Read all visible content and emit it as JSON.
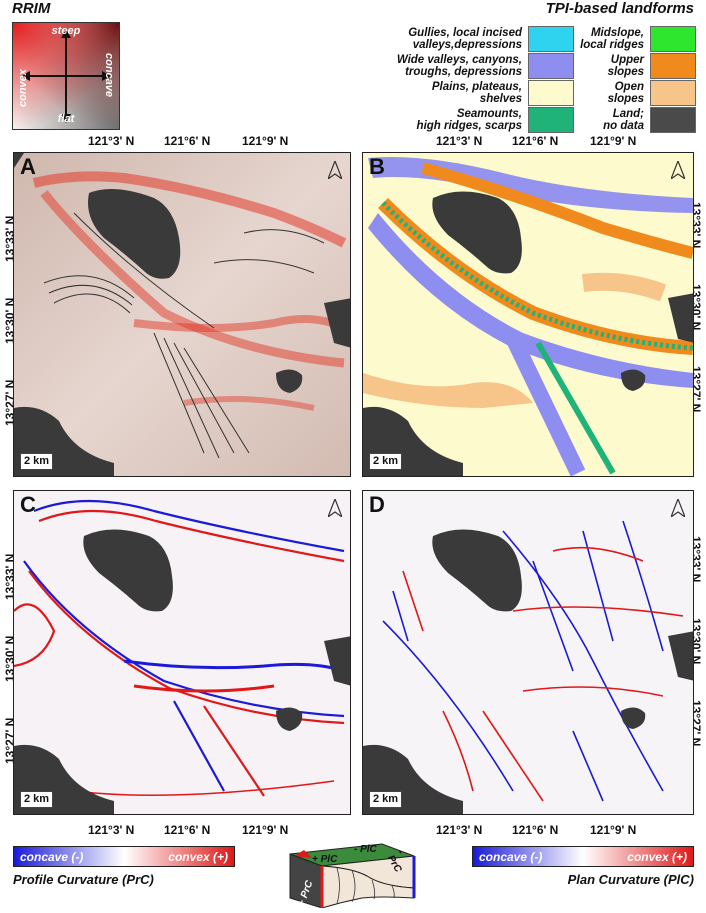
{
  "rrim": {
    "title": "RRIM",
    "labels": {
      "top": "steep",
      "bottom": "flat",
      "left": "convex",
      "right": "concave"
    }
  },
  "tpi": {
    "title": "TPI-based landforms",
    "left_items": [
      {
        "label_lines": [
          "Gullies, local incised",
          "valleys,depressions"
        ],
        "color": "#2fd3f0"
      },
      {
        "label_lines": [
          "Wide valleys, canyons,",
          "troughs, depressions"
        ],
        "color": "#8e8ef0"
      },
      {
        "label_lines": [
          "Plains, plateaus,",
          "shelves"
        ],
        "color": "#fdfbcd"
      },
      {
        "label_lines": [
          "Seamounts,",
          "high ridges, scarps"
        ],
        "color": "#1fb37a"
      }
    ],
    "right_items": [
      {
        "label_lines": [
          "Midslope,",
          "local ridges"
        ],
        "color": "#2ee62e"
      },
      {
        "label_lines": [
          "Upper",
          "slopes"
        ],
        "color": "#f08a1c"
      },
      {
        "label_lines": [
          "Open",
          "slopes"
        ],
        "color": "#f7c489"
      },
      {
        "label_lines": [
          "Land;",
          "no data"
        ],
        "color": "#4a4a4a"
      }
    ]
  },
  "coords": {
    "lon": [
      "121°3' N",
      "121°6' N",
      "121°9' N"
    ],
    "lat": [
      "13°33' N",
      "13°30' N",
      "13°27' N"
    ]
  },
  "panels": {
    "a": {
      "letter": "A",
      "scale": "2 km"
    },
    "b": {
      "letter": "B",
      "scale": "2 km"
    },
    "c": {
      "letter": "C",
      "scale": "2 km"
    },
    "d": {
      "letter": "D",
      "scale": "2 km"
    }
  },
  "colorbars": {
    "profile": {
      "left": "concave (-)",
      "right": "convex (+)",
      "title": "Profile Curvature (PrC)"
    },
    "plan": {
      "left": "concave (-)",
      "right": "convex (+)",
      "title": "Plan Curvature (PlC)"
    }
  },
  "diagram": {
    "plus_pic": "+ PlC",
    "minus_pic": "- PlC",
    "plus_prc": "+ PrC",
    "minus_prc": "- PrC"
  },
  "colors": {
    "land": "#3a3a3a",
    "relief": "#d9c5bd",
    "steep_red": "#e23a2a",
    "plains": "#fdfbcd",
    "concave_blue": "#1a1ad8",
    "convex_red": "#e01818"
  }
}
